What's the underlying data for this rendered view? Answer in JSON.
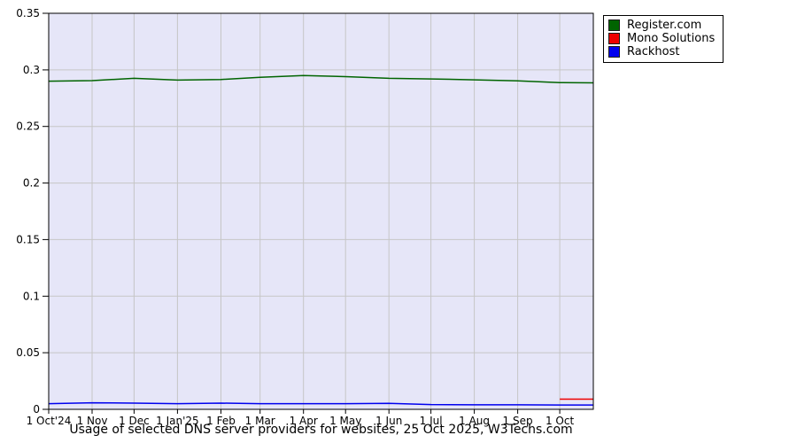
{
  "chart_data": {
    "type": "line",
    "title": "Usage of selected DNS server providers for websites, 25 Oct 2025, W3Techs.com",
    "xlabel": "",
    "ylabel": "",
    "ylim": [
      0,
      0.35
    ],
    "grid": true,
    "legend_position": "top-right",
    "plot_bg": "#e6e6f8",
    "grid_color": "#c6c6c6",
    "axis_color": "#000000",
    "x_total_days": 389,
    "x_ticks": [
      {
        "label": "1 Oct'24",
        "day": 0
      },
      {
        "label": "1 Nov",
        "day": 31
      },
      {
        "label": "1 Dec",
        "day": 61
      },
      {
        "label": "1 Jan'25",
        "day": 92
      },
      {
        "label": "1 Feb",
        "day": 123
      },
      {
        "label": "1 Mar",
        "day": 151
      },
      {
        "label": "1 Apr",
        "day": 182
      },
      {
        "label": "1 May",
        "day": 212
      },
      {
        "label": "1 Jun",
        "day": 243
      },
      {
        "label": "1 Jul",
        "day": 273
      },
      {
        "label": "1 Aug",
        "day": 304
      },
      {
        "label": "1 Sep",
        "day": 335
      },
      {
        "label": "1 Oct",
        "day": 365
      }
    ],
    "y_ticks": [
      {
        "label": "0.35",
        "value": 0.35
      },
      {
        "label": "0.3",
        "value": 0.3
      },
      {
        "label": "0.25",
        "value": 0.25
      },
      {
        "label": "0.2",
        "value": 0.2
      },
      {
        "label": "0.15",
        "value": 0.15
      },
      {
        "label": "0.1",
        "value": 0.1
      },
      {
        "label": "0.05",
        "value": 0.05
      },
      {
        "label": "0",
        "value": 0
      }
    ],
    "x_days": [
      0,
      31,
      61,
      92,
      123,
      151,
      182,
      212,
      243,
      273,
      304,
      335,
      365,
      389
    ],
    "series": [
      {
        "name": "Register.com",
        "color": "#006400",
        "values": [
          0.29,
          0.2905,
          0.2925,
          0.291,
          0.2915,
          0.2935,
          0.295,
          0.294,
          0.2925,
          0.292,
          0.2912,
          0.2903,
          0.2888,
          0.2885
        ]
      },
      {
        "name": "Mono Solutions",
        "color": "#ee0000",
        "values": [
          null,
          null,
          null,
          null,
          null,
          null,
          null,
          null,
          null,
          null,
          null,
          null,
          0.009,
          0.009
        ]
      },
      {
        "name": "Rackhost",
        "color": "#0000ee",
        "values": [
          0.005,
          0.0058,
          0.0055,
          0.005,
          0.0055,
          0.005,
          0.005,
          0.005,
          0.0053,
          0.0042,
          0.004,
          0.004,
          0.0038,
          0.0038
        ]
      }
    ]
  }
}
